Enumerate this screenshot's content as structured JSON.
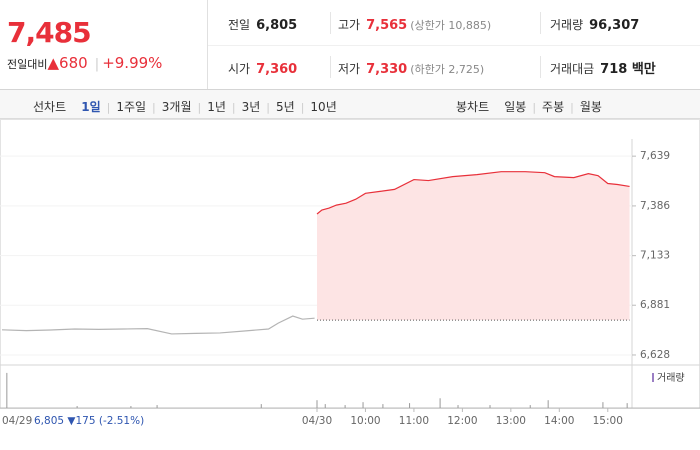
{
  "header": {
    "price": "7,485",
    "change_label": "전일대비",
    "change": "▲680",
    "change_rate": "+9.99%"
  },
  "info": [
    [
      {
        "label": "전일",
        "value": "6,805"
      },
      {
        "label": "고가",
        "value": "7,565",
        "note": "(상한가 10,885)"
      },
      {
        "label": "거래량",
        "value": "96,307"
      }
    ],
    [
      {
        "label": "시가",
        "value": "7,360"
      },
      {
        "label": "저가",
        "value": "7,330",
        "note": "(하한가 2,725)"
      },
      {
        "label": "거래대금",
        "value": "718 백만"
      }
    ]
  ],
  "tabs": {
    "line_label": "선차트",
    "line_periods": [
      "1일",
      "1주일",
      "3개월",
      "1년",
      "3년",
      "5년",
      "10년"
    ],
    "candle_label": "봉차트",
    "candle_periods": [
      "일봉",
      "주봉",
      "월봉"
    ]
  },
  "chart_data": {
    "type": "line",
    "prev_day_label": "04/29",
    "prev_day_summary": "6,805 ▼175 (-2.51%)",
    "xlim": [
      0,
      13
    ],
    "xticks": [
      {
        "value": 6.5,
        "label": "04/30"
      },
      {
        "value": 7.5,
        "label": "10:00"
      },
      {
        "value": 8.5,
        "label": "11:00"
      },
      {
        "value": 9.5,
        "label": "12:00"
      },
      {
        "value": 10.5,
        "label": "13:00"
      },
      {
        "value": 11.5,
        "label": "14:00"
      },
      {
        "value": 12.5,
        "label": "15:00"
      }
    ],
    "ylim": [
      6577,
      7828
    ],
    "yticks": [
      {
        "value": 7639,
        "label": "7,639"
      },
      {
        "value": 7386,
        "label": "7,386"
      },
      {
        "value": 7133,
        "label": "7,133"
      },
      {
        "value": 6881,
        "label": "6,881"
      },
      {
        "value": 6628,
        "label": "6,628"
      }
    ],
    "baseline": 6805,
    "series": [
      {
        "color": "#b4b4b4",
        "x": [
          0,
          0.5,
          1,
          1.5,
          2,
          2.5,
          3,
          3.5,
          4,
          4.5,
          5,
          5.5,
          5.7,
          6,
          6.2,
          6.45
        ],
        "values": [
          6756,
          6752,
          6755,
          6760,
          6758,
          6760,
          6762,
          6735,
          6738,
          6740,
          6750,
          6760,
          6790,
          6826,
          6810,
          6815
        ]
      },
      {
        "color": "#e8303a",
        "fill": "#fde4e4",
        "x": [
          6.5,
          6.6,
          6.75,
          6.9,
          7.1,
          7.3,
          7.5,
          7.8,
          8.1,
          8.5,
          8.8,
          9.3,
          9.8,
          10.3,
          10.8,
          11.2,
          11.4,
          11.8,
          12.1,
          12.3,
          12.5,
          12.7,
          12.95
        ],
        "values": [
          7345,
          7365,
          7375,
          7390,
          7400,
          7420,
          7450,
          7460,
          7470,
          7520,
          7515,
          7535,
          7545,
          7560,
          7560,
          7555,
          7535,
          7530,
          7550,
          7540,
          7500,
          7495,
          7485
        ]
      }
    ],
    "volume": {
      "name": "거래량",
      "color": "#9b7fc4",
      "ylim": [
        0,
        4000
      ],
      "x": [
        0.1,
        1.55,
        2.66,
        3.2,
        5.35,
        6.5,
        6.67,
        7.08,
        7.45,
        7.86,
        8.41,
        9.04,
        9.41,
        10.07,
        10.9,
        11.27,
        12.4,
        12.9
      ],
      "values": [
        3600,
        200,
        200,
        300,
        400,
        800,
        400,
        300,
        600,
        400,
        500,
        1000,
        300,
        300,
        300,
        800,
        600,
        500
      ]
    }
  }
}
